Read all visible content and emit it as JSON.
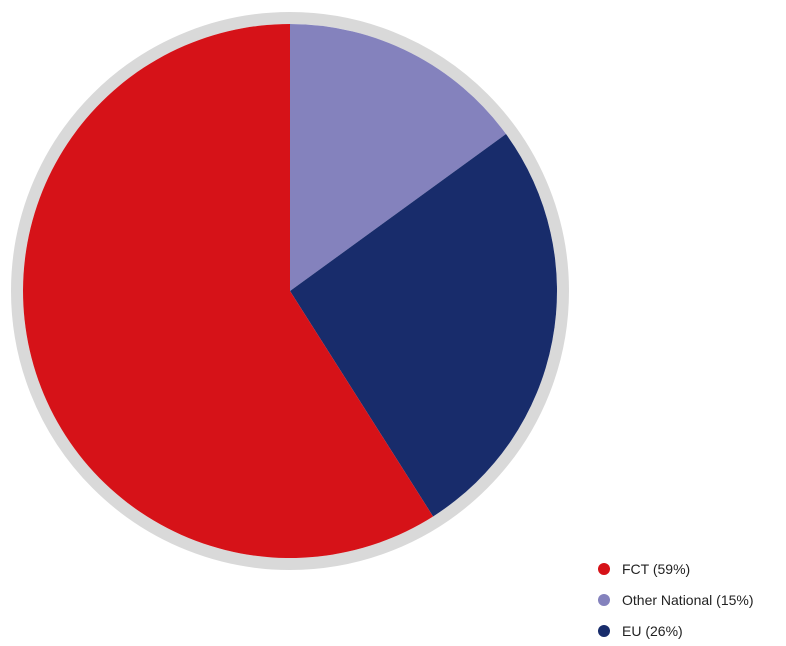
{
  "chart_data": {
    "type": "pie",
    "title": "",
    "slices": [
      {
        "label": "FCT (59%)",
        "value": 59,
        "color": "#d61218"
      },
      {
        "label": "Other National (15%)",
        "value": 15,
        "color": "#8482bd"
      },
      {
        "label": "EU (26%)",
        "value": 26,
        "color": "#182c6b"
      }
    ],
    "ring_color": "#d9d9d9",
    "legend_position": "bottom-right"
  }
}
